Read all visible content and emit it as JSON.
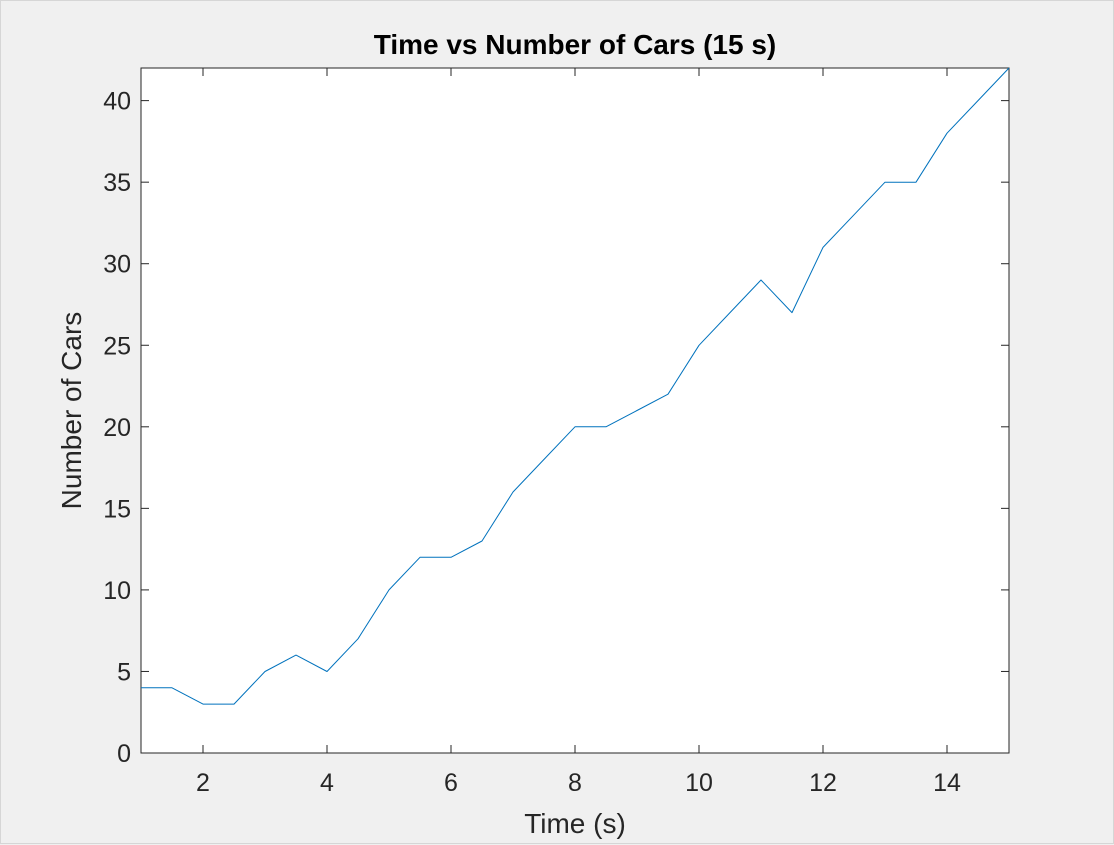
{
  "chart_data": {
    "type": "line",
    "title": "Time vs Number of Cars (15 s)",
    "xlabel": "Time (s)",
    "ylabel": "Number of Cars",
    "xlim": [
      1,
      15
    ],
    "ylim": [
      0,
      42
    ],
    "xticks": [
      2,
      4,
      6,
      8,
      10,
      12,
      14
    ],
    "yticks": [
      0,
      5,
      10,
      15,
      20,
      25,
      30,
      35,
      40
    ],
    "grid": false,
    "legend": "none",
    "series": [
      {
        "color": "#0072BD",
        "x": [
          1,
          1.5,
          2,
          2.5,
          3,
          3.5,
          4,
          4.5,
          5,
          5.5,
          6,
          6.5,
          7,
          7.5,
          8,
          8.5,
          9,
          9.5,
          10,
          10.5,
          11,
          11.5,
          12,
          12.5,
          13,
          13.5,
          14,
          14.5,
          15
        ],
        "y": [
          4,
          4,
          3,
          3,
          5,
          6,
          5,
          7,
          10,
          12,
          12,
          13,
          16,
          18,
          20,
          20,
          21,
          22,
          25,
          27,
          29,
          27,
          31,
          33,
          35,
          35,
          38,
          40,
          42
        ]
      }
    ]
  }
}
